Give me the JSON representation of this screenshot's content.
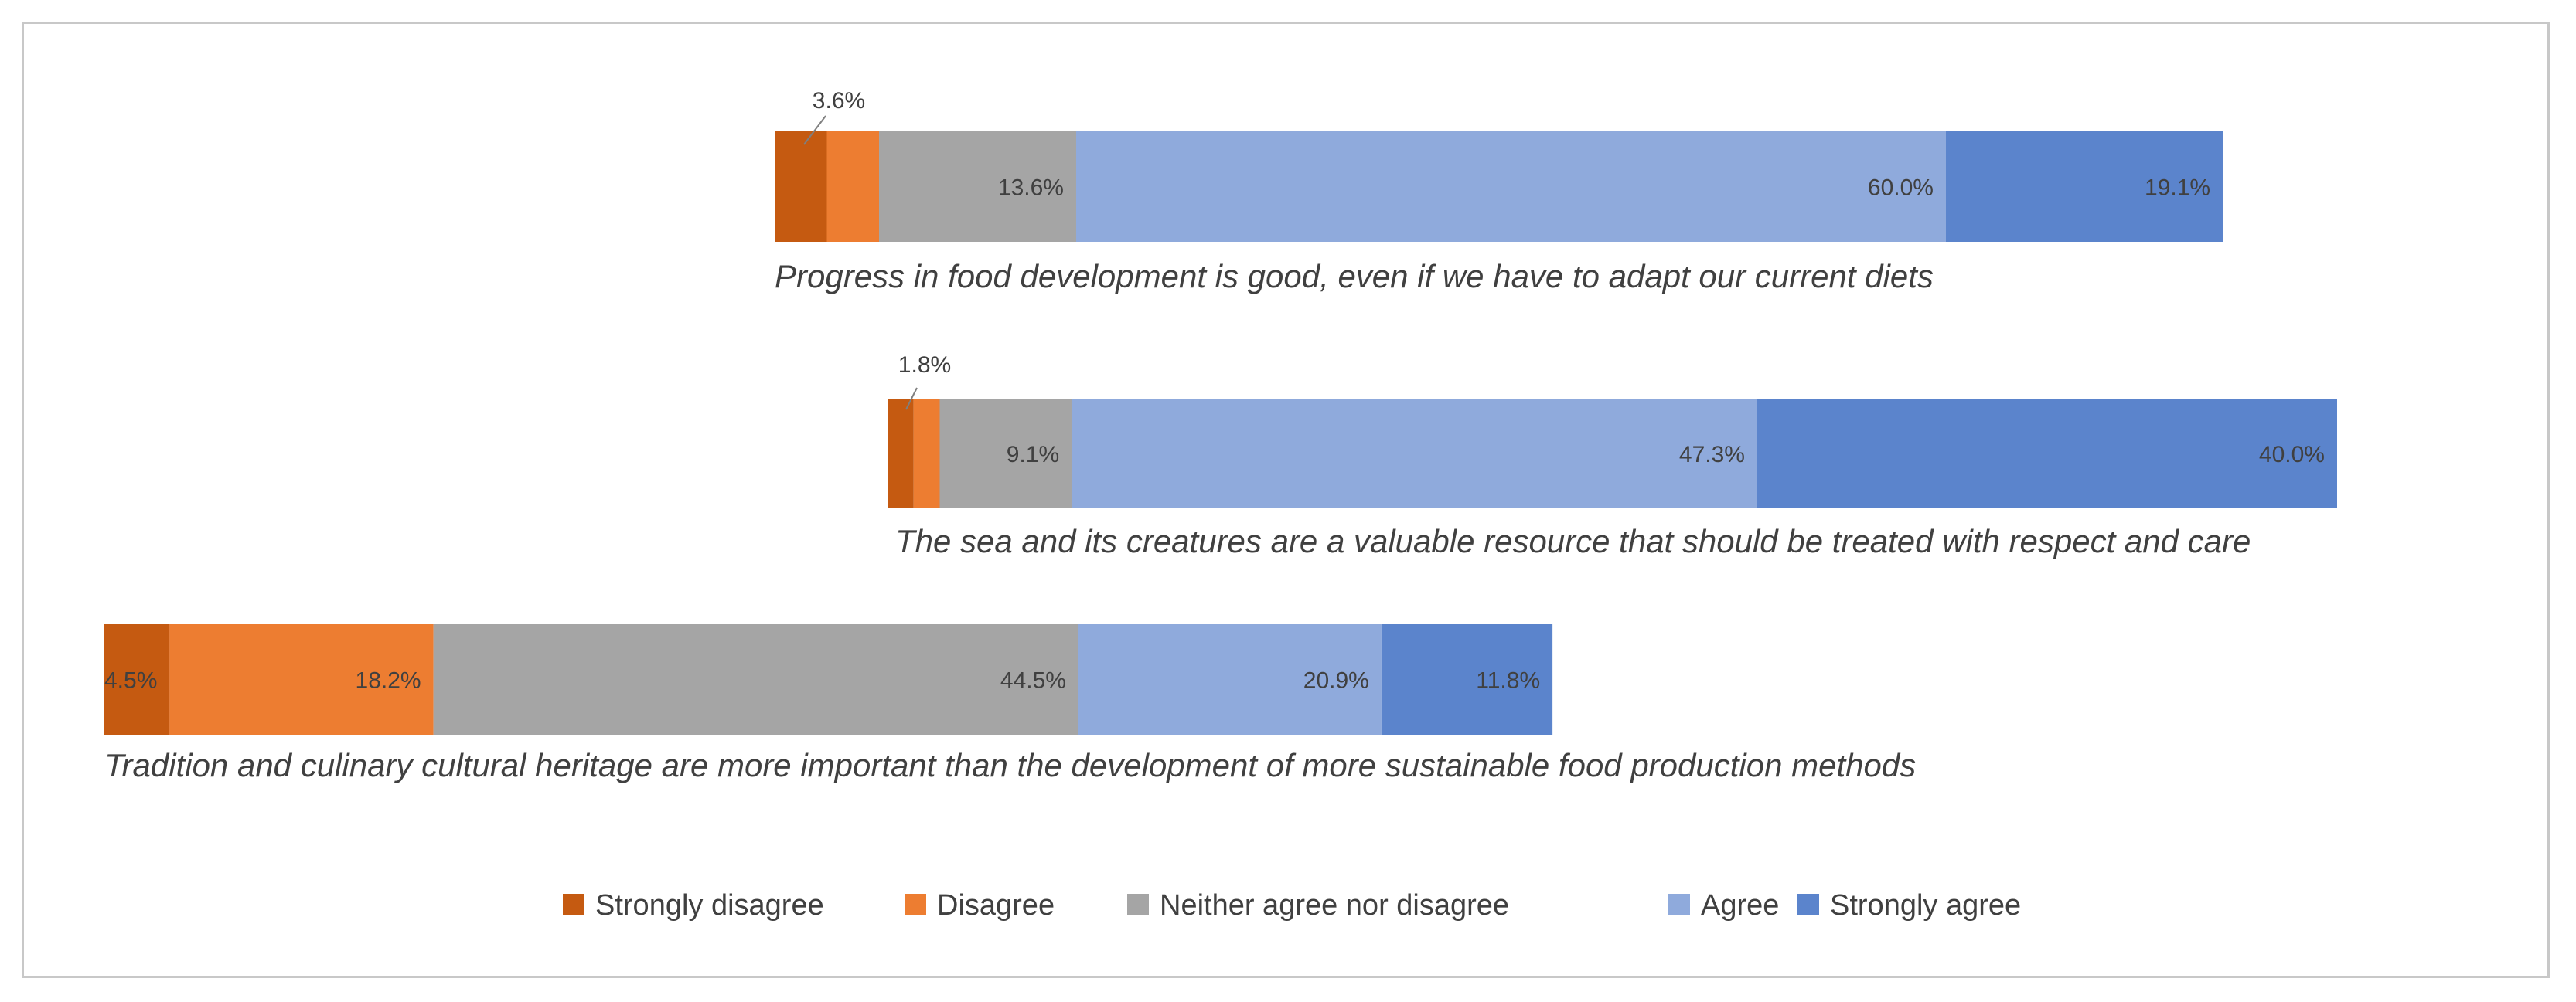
{
  "chart_data": {
    "type": "bar",
    "subtype": "stacked-horizontal-100",
    "legend_position": "bottom",
    "colors": [
      "#c55a11",
      "#ed7d31",
      "#a5a5a5",
      "#8faadc",
      "#5b84cc"
    ],
    "legend": [
      "Strongly disagree",
      "Disagree",
      "Neither agree nor disagree",
      "Agree",
      "Strongly agree"
    ],
    "bars": [
      {
        "statement": "Progress in food development is good, even if we have to adapt our current diets",
        "values": [
          3.6,
          3.6,
          13.6,
          60.0,
          19.1
        ],
        "labels": [
          "",
          "3.6%",
          "13.6%",
          "60.0%",
          "19.1%"
        ]
      },
      {
        "statement": "The sea and its creatures  are a valuable resource that should be treated with respect and care",
        "values": [
          1.8,
          1.8,
          9.1,
          47.3,
          40.0
        ],
        "labels": [
          "",
          "1.8%",
          "9.1%",
          "47.3%",
          "40.0%"
        ]
      },
      {
        "statement": "Tradition and culinary cultural heritage are more important than the development of more sustainable food production methods",
        "values": [
          4.5,
          18.2,
          44.5,
          20.9,
          11.8
        ],
        "labels": [
          "4.5%",
          "18.2%",
          "44.5%",
          "20.9%",
          "11.8%"
        ]
      }
    ]
  }
}
